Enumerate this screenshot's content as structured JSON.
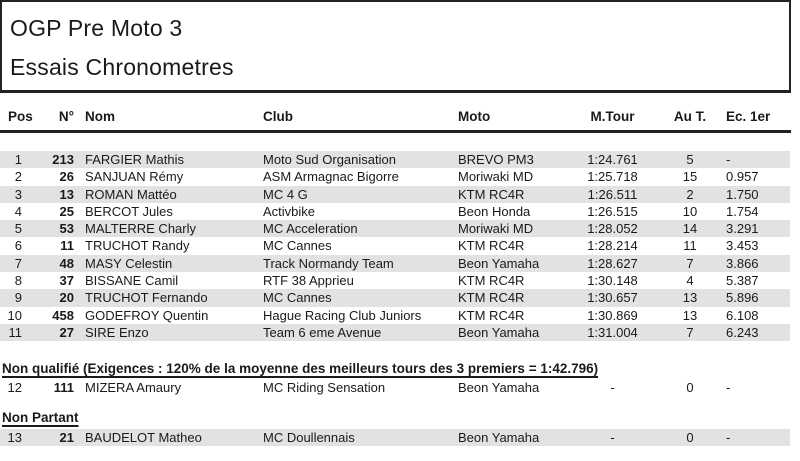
{
  "header": {
    "event_title": "OGP Pre Moto 3",
    "session_title": "Essais Chronometres"
  },
  "table": {
    "columns": [
      {
        "key": "pos",
        "label": "Pos"
      },
      {
        "key": "num",
        "label": "N°"
      },
      {
        "key": "nom",
        "label": "Nom"
      },
      {
        "key": "club",
        "label": "Club"
      },
      {
        "key": "moto",
        "label": "Moto"
      },
      {
        "key": "mtour",
        "label": "M.Tour"
      },
      {
        "key": "aut",
        "label": "Au T."
      },
      {
        "key": "ec",
        "label": "Ec. 1er"
      }
    ],
    "rows": [
      {
        "pos": "1",
        "num": "213",
        "nom": "FARGIER Mathis",
        "club": "Moto Sud Organisation",
        "moto": "BREVO PM3",
        "mtour": "1:24.761",
        "aut": "5",
        "ec": "-"
      },
      {
        "pos": "2",
        "num": "26",
        "nom": "SANJUAN Rémy",
        "club": "ASM Armagnac Bigorre",
        "moto": "Moriwaki MD",
        "mtour": "1:25.718",
        "aut": "15",
        "ec": "0.957"
      },
      {
        "pos": "3",
        "num": "13",
        "nom": "ROMAN Mattéo",
        "club": "MC 4 G",
        "moto": "KTM RC4R",
        "mtour": "1:26.511",
        "aut": "2",
        "ec": "1.750"
      },
      {
        "pos": "4",
        "num": "25",
        "nom": "BERCOT Jules",
        "club": "Activbike",
        "moto": "Beon Honda",
        "mtour": "1:26.515",
        "aut": "10",
        "ec": "1.754"
      },
      {
        "pos": "5",
        "num": "53",
        "nom": "MALTERRE Charly",
        "club": "MC Acceleration",
        "moto": "Moriwaki MD",
        "mtour": "1:28.052",
        "aut": "14",
        "ec": "3.291"
      },
      {
        "pos": "6",
        "num": "11",
        "nom": "TRUCHOT Randy",
        "club": "MC Cannes",
        "moto": "KTM RC4R",
        "mtour": "1:28.214",
        "aut": "11",
        "ec": "3.453"
      },
      {
        "pos": "7",
        "num": "48",
        "nom": "MASY Celestin",
        "club": "Track Normandy Team",
        "moto": "Beon Yamaha",
        "mtour": "1:28.627",
        "aut": "7",
        "ec": "3.866"
      },
      {
        "pos": "8",
        "num": "37",
        "nom": "BISSANE Camil",
        "club": "RTF 38 Apprieu",
        "moto": "KTM RC4R",
        "mtour": "1:30.148",
        "aut": "4",
        "ec": "5.387"
      },
      {
        "pos": "9",
        "num": "20",
        "nom": "TRUCHOT Fernando",
        "club": "MC Cannes",
        "moto": "KTM RC4R",
        "mtour": "1:30.657",
        "aut": "13",
        "ec": "5.896"
      },
      {
        "pos": "10",
        "num": "458",
        "nom": "GODEFROY Quentin",
        "club": "Hague Racing Club Juniors",
        "moto": "KTM RC4R",
        "mtour": "1:30.869",
        "aut": "13",
        "ec": "6.108"
      },
      {
        "pos": "11",
        "num": "27",
        "nom": "SIRE Enzo",
        "club": "Team 6 eme Avenue",
        "moto": "Beon Yamaha",
        "mtour": "1:31.004",
        "aut": "7",
        "ec": "6.243"
      }
    ]
  },
  "sections": {
    "non_qualifie": {
      "label": "Non qualifié (Exigences : 120% de la moyenne des meilleurs tours des 3 premiers = 1:42.796)",
      "rows": [
        {
          "pos": "12",
          "num": "111",
          "nom": "MIZERA Amaury",
          "club": "MC Riding Sensation",
          "moto": "Beon Yamaha",
          "mtour": "-",
          "aut": "0",
          "ec": "-"
        }
      ]
    },
    "non_partant": {
      "label": "Non Partant",
      "rows": [
        {
          "pos": "13",
          "num": "21",
          "nom": "BAUDELOT Matheo",
          "club": "MC Doullennais",
          "moto": "Beon Yamaha",
          "mtour": "-",
          "aut": "0",
          "ec": "-"
        }
      ]
    }
  },
  "colors": {
    "stripe": "#e2e2e2",
    "rule": "#222222",
    "text": "#1a1a1a"
  }
}
